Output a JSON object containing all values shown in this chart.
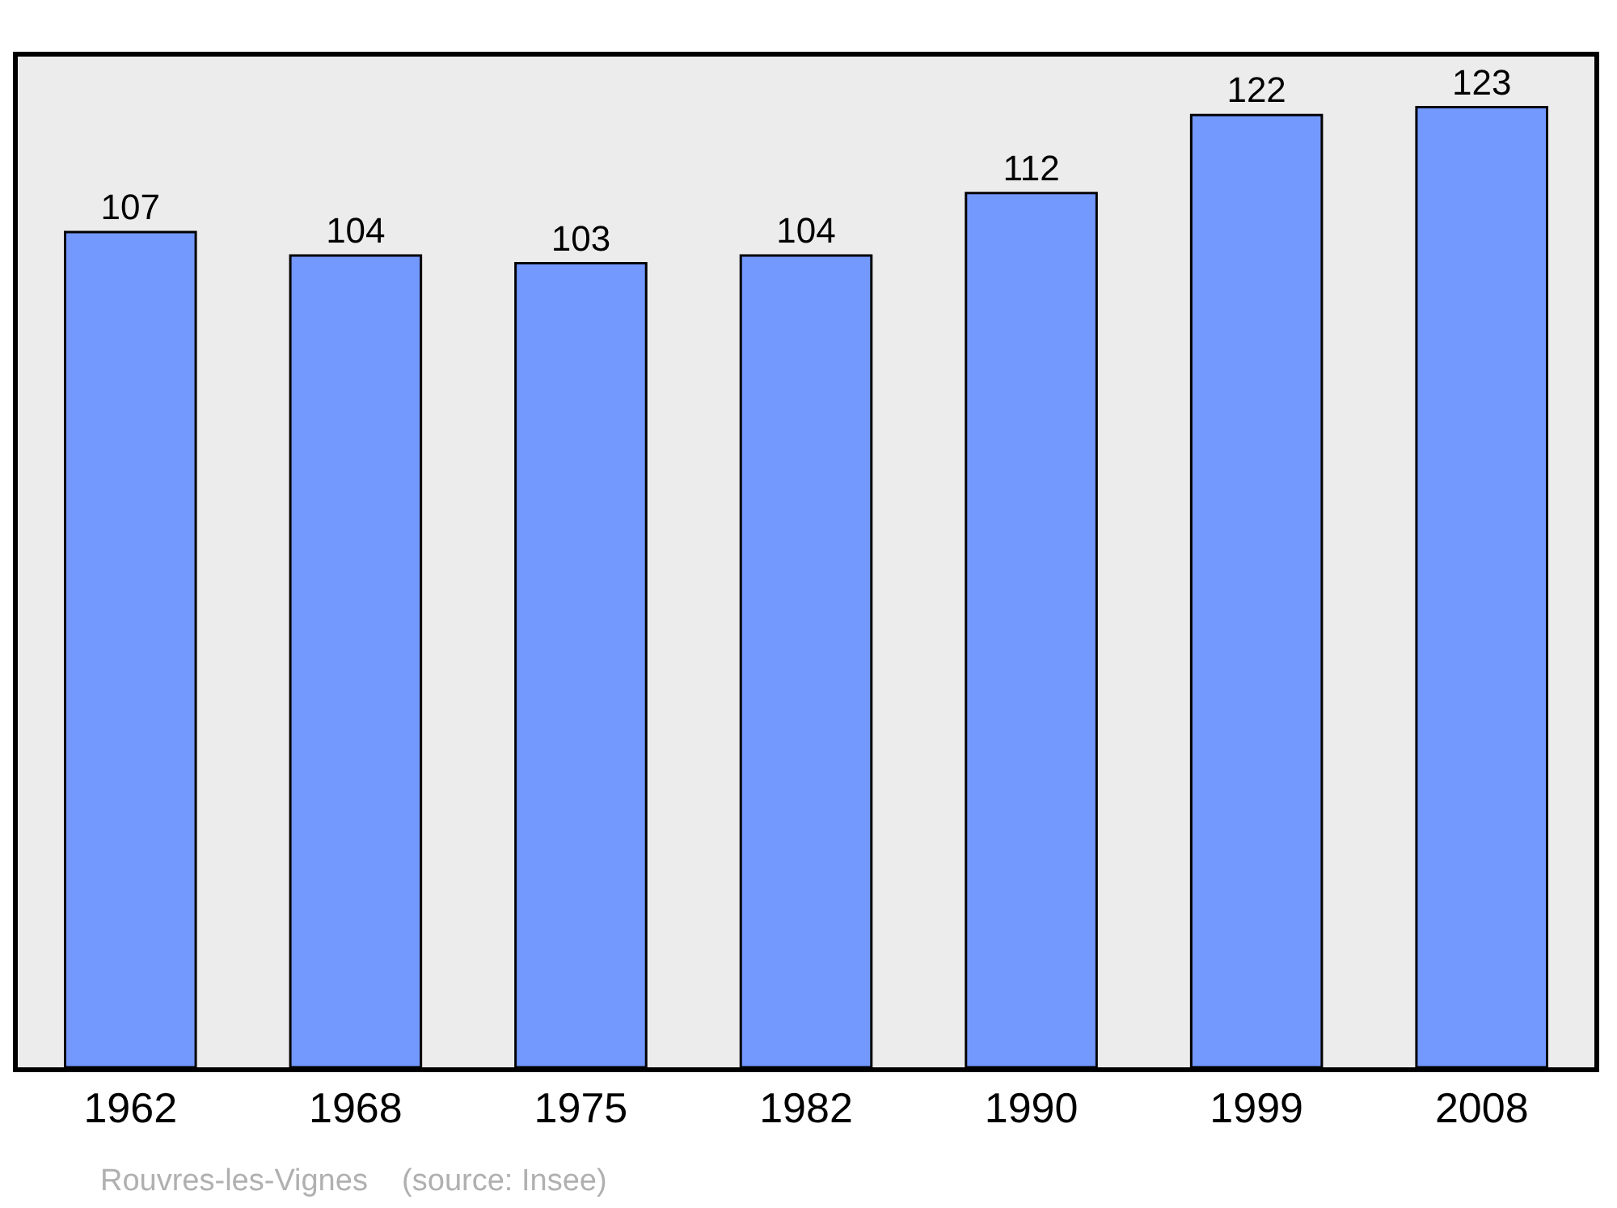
{
  "chart_data": {
    "type": "bar",
    "categories": [
      "1962",
      "1968",
      "1975",
      "1982",
      "1990",
      "1999",
      "2008"
    ],
    "values": [
      107,
      104,
      103,
      104,
      112,
      122,
      123
    ],
    "color": "#7399ff",
    "data_labels": true,
    "grid": false,
    "legend": false,
    "tick_labels": "x",
    "annotations": [
      "Rouvres-les-Vignes    (source: Insee)"
    ]
  }
}
